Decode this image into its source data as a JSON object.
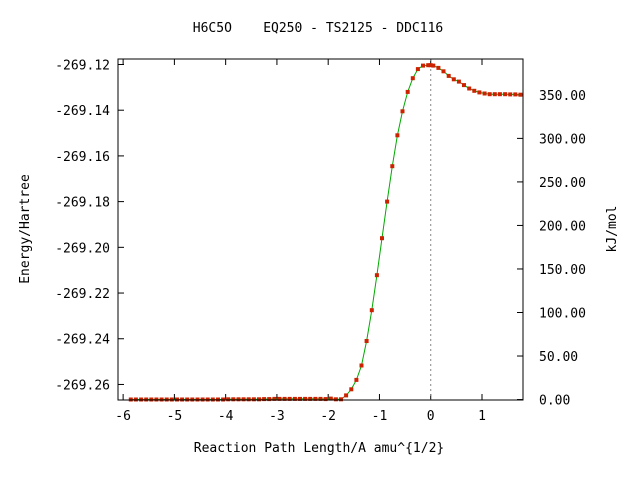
{
  "chart_data": {
    "type": "line",
    "title": "H6C5O    EQ250 - TS2125 - DDC116",
    "xlabel": "Reaction Path Length/A amu^{1/2}",
    "ylabel": "Energy/Hartree",
    "y2label": "kJ/mol",
    "xlim": [
      -6.1,
      1.8
    ],
    "ylim": [
      -269.2668,
      -269.1176
    ],
    "x_ticks": [
      -6,
      -5,
      -4,
      -3,
      -2,
      -1,
      0,
      1
    ],
    "x_tick_labels": [
      "-6",
      "-5",
      "-4",
      "-3",
      "-2",
      "-1",
      "0",
      "1"
    ],
    "y_ticks": [
      -269.26,
      -269.24,
      -269.22,
      -269.2,
      -269.18,
      -269.16,
      -269.14,
      -269.12
    ],
    "y_tick_labels": [
      "-269.26",
      "-269.24",
      "-269.22",
      "-269.20",
      "-269.18",
      "-269.16",
      "-269.14",
      "-269.12"
    ],
    "y2_reference_energy": -269.2666,
    "y2_ticks": [
      0,
      50,
      100,
      150,
      200,
      250,
      300,
      350
    ],
    "y2_tick_labels": [
      "0.00",
      "50.00",
      "100.00",
      "150.00",
      "200.00",
      "250.00",
      "300.00",
      "350.00"
    ],
    "ts_marker_x": 0,
    "line_color": "#00aa00",
    "marker_color": "#cc2200",
    "grid": false,
    "series": [
      {
        "x": [
          -5.85,
          -5.75,
          -5.65,
          -5.55,
          -5.45,
          -5.35,
          -5.25,
          -5.15,
          -5.05,
          -4.95,
          -4.85,
          -4.75,
          -4.65,
          -4.55,
          -4.45,
          -4.35,
          -4.25,
          -4.15,
          -4.05,
          -3.95,
          -3.85,
          -3.75,
          -3.65,
          -3.55,
          -3.45,
          -3.35,
          -3.25,
          -3.15,
          -3.05,
          -2.95,
          -2.85,
          -2.75,
          -2.65,
          -2.55,
          -2.45,
          -2.35,
          -2.25,
          -2.15,
          -2.05,
          -1.95,
          -1.85,
          -1.75,
          -1.65,
          -1.55,
          -1.45,
          -1.35,
          -1.25,
          -1.15,
          -1.05,
          -0.95,
          -0.85,
          -0.75,
          -0.65,
          -0.55,
          -0.45,
          -0.35,
          -0.25,
          -0.15,
          -0.05,
          0.0,
          0.05,
          0.15,
          0.25,
          0.35,
          0.45,
          0.55,
          0.65,
          0.75,
          0.85,
          0.95,
          1.05,
          1.15,
          1.25,
          1.35,
          1.45,
          1.55,
          1.65,
          1.75
        ],
        "y": [
          -269.2666,
          -269.2666,
          -269.2666,
          -269.2666,
          -269.2666,
          -269.2666,
          -269.2666,
          -269.2666,
          -269.2666,
          -269.2666,
          -269.2666,
          -269.2666,
          -269.2666,
          -269.2666,
          -269.2666,
          -269.2666,
          -269.2666,
          -269.2666,
          -269.2666,
          -269.2665,
          -269.2665,
          -269.2665,
          -269.2665,
          -269.2665,
          -269.2665,
          -269.2665,
          -269.2664,
          -269.2664,
          -269.2663,
          -269.2663,
          -269.2663,
          -269.2663,
          -269.2663,
          -269.2663,
          -269.2663,
          -269.2663,
          -269.2663,
          -269.2663,
          -269.2664,
          -269.2662,
          -269.2665,
          -269.2665,
          -269.2648,
          -269.2621,
          -269.258,
          -269.2517,
          -269.241,
          -269.2275,
          -269.2122,
          -269.196,
          -269.18,
          -269.1645,
          -269.151,
          -269.1405,
          -269.132,
          -269.126,
          -269.122,
          -269.1205,
          -269.1203,
          -269.1203,
          -269.1205,
          -269.1215,
          -269.123,
          -269.125,
          -269.1265,
          -269.1275,
          -269.129,
          -269.1305,
          -269.1315,
          -269.1322,
          -269.1327,
          -269.133,
          -269.133,
          -269.133,
          -269.133,
          -269.1331,
          -269.1331,
          -269.1332
        ]
      }
    ]
  }
}
